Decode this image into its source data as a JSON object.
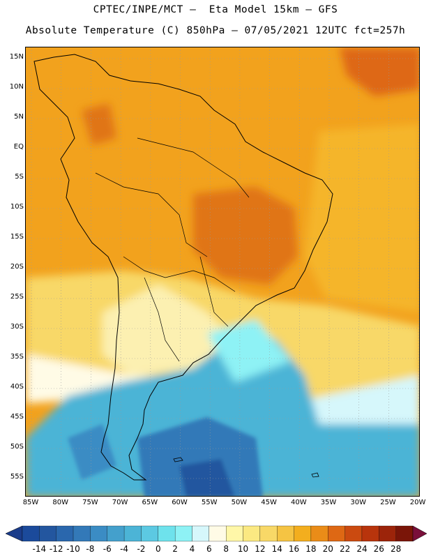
{
  "header": {
    "line1": "CPTEC/INPE/MCT –  Eta Model 15km – GFS",
    "line2": "Absolute Temperature (C) 850hPa – 07/05/2021 12UTC fct=257h"
  },
  "map": {
    "region": "South America",
    "lat_labels": [
      "15N",
      "10N",
      "5N",
      "EQ",
      "5S",
      "10S",
      "15S",
      "20S",
      "25S",
      "30S",
      "35S",
      "40S",
      "45S",
      "50S",
      "55S"
    ],
    "lon_labels": [
      "85W",
      "80W",
      "75W",
      "70W",
      "65W",
      "60W",
      "55W",
      "50W",
      "45W",
      "40W",
      "35W",
      "30W",
      "25W",
      "20W"
    ],
    "colors": {
      "land_fill": "#f2a21d",
      "hot": "#e07418",
      "warm": "#f5b52a",
      "mild": "#f8d867",
      "cool_land": "#fcf0b1",
      "cold": "#2fb6dc",
      "coldest": "#2a76b8"
    }
  },
  "colorbar": {
    "labels": [
      "-14",
      "-12",
      "-10",
      "-8",
      "-6",
      "-4",
      "-2",
      "0",
      "2",
      "4",
      "6",
      "8",
      "10",
      "12",
      "14",
      "16",
      "18",
      "20",
      "22",
      "24",
      "26",
      "28"
    ],
    "colors": [
      "#1b4a9b",
      "#23569f",
      "#2a67ad",
      "#3379b8",
      "#3b8cc4",
      "#44a0cc",
      "#4cb4d6",
      "#5cc9e2",
      "#6ee2ec",
      "#8ef2f5",
      "#d6f7fb",
      "#fffbe6",
      "#fff7a8",
      "#fbe982",
      "#f8d867",
      "#f5c443",
      "#f3ae1e",
      "#ea8c18",
      "#de6814",
      "#cb4a10",
      "#b8340c",
      "#9c240a",
      "#7a1508"
    ],
    "under_color": "#1a3c8a",
    "over_color": "#7a0f3a"
  }
}
